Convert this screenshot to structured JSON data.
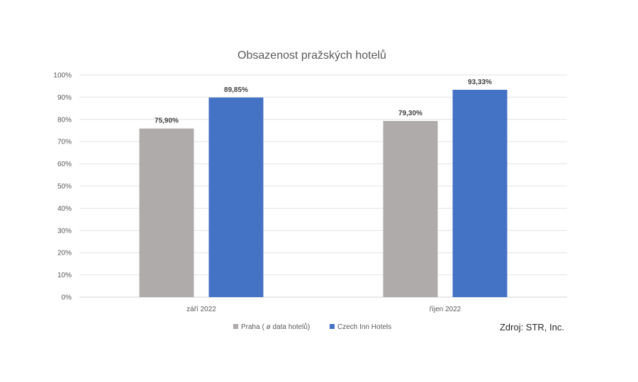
{
  "chart_data": {
    "type": "bar",
    "title": "Obsazenost pražských hotelů",
    "categories": [
      "září 2022",
      "říjen 2022"
    ],
    "series": [
      {
        "name": "Praha ( ø  data hotelů)",
        "values": [
          75.9,
          79.3
        ],
        "labels": [
          "75,90%",
          "79,30%"
        ],
        "color": "#AFABAB"
      },
      {
        "name": "Czech Inn Hotels",
        "values": [
          89.85,
          93.33
        ],
        "labels": [
          "89,85%",
          "93,33%"
        ],
        "color": "#4472C4"
      }
    ],
    "ylim": [
      0,
      100
    ],
    "yticks": [
      "0%",
      "10%",
      "20%",
      "30%",
      "40%",
      "50%",
      "60%",
      "70%",
      "80%",
      "90%",
      "100%"
    ],
    "grid": true,
    "legend_position": "bottom",
    "annotation": "Zdroj: STR, Inc."
  }
}
